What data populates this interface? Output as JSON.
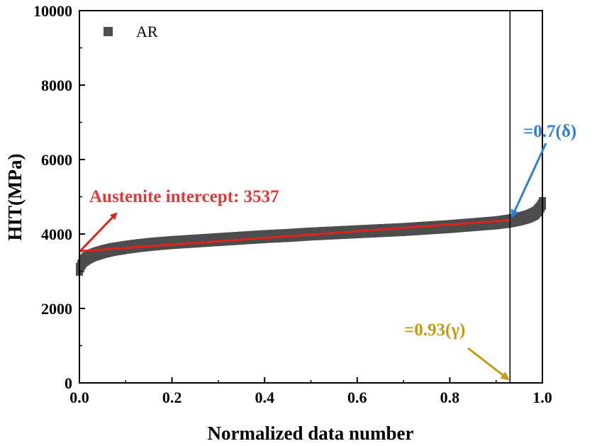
{
  "chart_data": {
    "type": "scatter",
    "xlabel": "Normalized data number",
    "ylabel": "HIT(MPa)",
    "xlim": [
      0,
      1
    ],
    "ylim": [
      0,
      10000
    ],
    "x_ticks": [
      "0.0",
      "0.2",
      "0.4",
      "0.6",
      "0.8",
      "1.0"
    ],
    "y_ticks": [
      "0",
      "2000",
      "4000",
      "6000",
      "8000",
      "10000"
    ],
    "legend": {
      "position": "top-left",
      "entries": [
        "AR"
      ]
    },
    "series": [
      {
        "name": "AR",
        "color": "#4d4d4d",
        "marker": "square",
        "points": [
          [
            0.0,
            3050
          ],
          [
            0.005,
            3200
          ],
          [
            0.01,
            3300
          ],
          [
            0.02,
            3380
          ],
          [
            0.03,
            3440
          ],
          [
            0.05,
            3520
          ],
          [
            0.07,
            3580
          ],
          [
            0.1,
            3640
          ],
          [
            0.13,
            3690
          ],
          [
            0.16,
            3730
          ],
          [
            0.2,
            3770
          ],
          [
            0.25,
            3810
          ],
          [
            0.3,
            3850
          ],
          [
            0.35,
            3890
          ],
          [
            0.4,
            3930
          ],
          [
            0.45,
            3960
          ],
          [
            0.5,
            4000
          ],
          [
            0.55,
            4030
          ],
          [
            0.6,
            4060
          ],
          [
            0.65,
            4090
          ],
          [
            0.7,
            4120
          ],
          [
            0.75,
            4160
          ],
          [
            0.8,
            4200
          ],
          [
            0.85,
            4250
          ],
          [
            0.9,
            4300
          ],
          [
            0.93,
            4350
          ],
          [
            0.95,
            4400
          ],
          [
            0.97,
            4470
          ],
          [
            0.985,
            4560
          ],
          [
            0.995,
            4700
          ],
          [
            1.0,
            4820
          ]
        ]
      }
    ],
    "fit_line": {
      "color": "#e0221c",
      "x": [
        0.0,
        0.93
      ],
      "y": [
        3537,
        4370
      ]
    },
    "vline": {
      "x": 0.93,
      "color": "#000000"
    },
    "annotations": [
      {
        "text": "Austenite intercept: 3537",
        "color": "#e03a3a"
      },
      {
        "text": "=0.7(δ)",
        "color": "#2f7fd6"
      },
      {
        "text": "=0.93(γ)",
        "color": "#c49a14"
      }
    ]
  }
}
